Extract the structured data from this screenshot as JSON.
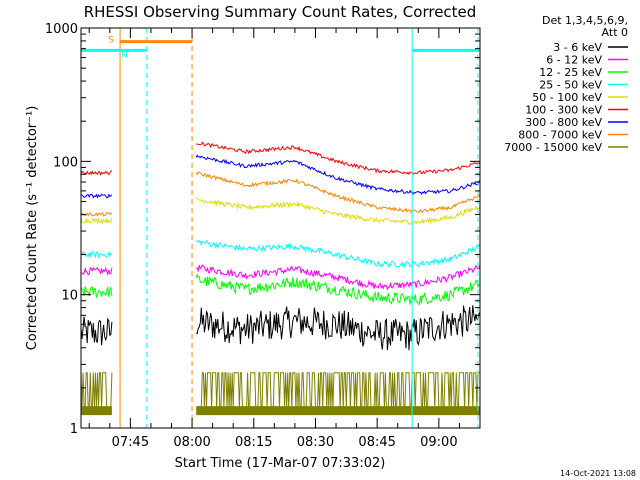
{
  "chart_data": {
    "type": "line",
    "title": "RHESSI Observing Summary Count Rates, Corrected",
    "xlabel": "Start Time (17-Mar-07 07:33:02)",
    "ylabel": "Corrected Count Rate (s⁻¹ detector⁻¹)",
    "yscale": "log",
    "ylim": [
      1,
      1000
    ],
    "xlim_minutes": [
      0,
      97
    ],
    "xticks": [
      {
        "label": "07:45",
        "min": 12
      },
      {
        "label": "08:00",
        "min": 27
      },
      {
        "label": "08:15",
        "min": 42
      },
      {
        "label": "08:30",
        "min": 57
      },
      {
        "label": "08:45",
        "min": 72
      },
      {
        "label": "09:00",
        "min": 87
      }
    ],
    "yticks": [
      {
        "label": "1",
        "value": 1
      },
      {
        "label": "10",
        "value": 10
      },
      {
        "label": "100",
        "value": 100
      },
      {
        "label": "1000",
        "value": 1000
      }
    ],
    "legend_title_lines": [
      "Det 1,3,4,5,6,9,",
      "Att 0"
    ],
    "legend_placement": "right",
    "timestamp": "14-Oct-2021 13:08",
    "gaps": [
      {
        "start_min": 7.5,
        "end_min": 27.8
      }
    ],
    "series": [
      {
        "name": "3 - 6 keV",
        "color": "#000000",
        "noise": 0.28,
        "points": [
          [
            0,
            5.2
          ],
          [
            7,
            5.2
          ],
          [
            28,
            6.2
          ],
          [
            40,
            5.5
          ],
          [
            52,
            6.3
          ],
          [
            62,
            6.0
          ],
          [
            72,
            5.0
          ],
          [
            80,
            5.0
          ],
          [
            88,
            6.0
          ],
          [
            97,
            6.5
          ]
        ]
      },
      {
        "name": "6 - 12 keV",
        "color": "#ff00ff",
        "noise": 0.06,
        "points": [
          [
            0,
            15
          ],
          [
            7,
            15
          ],
          [
            28,
            16
          ],
          [
            40,
            14
          ],
          [
            52,
            15.5
          ],
          [
            62,
            13.5
          ],
          [
            72,
            11.5
          ],
          [
            82,
            12
          ],
          [
            90,
            13.5
          ],
          [
            97,
            16
          ]
        ]
      },
      {
        "name": "12 - 25 keV",
        "color": "#00ff00",
        "noise": 0.1,
        "points": [
          [
            0,
            10.5
          ],
          [
            7,
            10.5
          ],
          [
            28,
            13
          ],
          [
            40,
            11
          ],
          [
            52,
            12.5
          ],
          [
            62,
            11
          ],
          [
            72,
            9.5
          ],
          [
            82,
            9.2
          ],
          [
            90,
            10
          ],
          [
            97,
            12
          ]
        ]
      },
      {
        "name": "25 - 50 keV",
        "color": "#00ffff",
        "noise": 0.05,
        "points": [
          [
            0,
            20
          ],
          [
            7,
            20
          ],
          [
            28,
            25
          ],
          [
            40,
            22
          ],
          [
            52,
            23
          ],
          [
            62,
            20
          ],
          [
            72,
            17
          ],
          [
            82,
            17
          ],
          [
            90,
            18.5
          ],
          [
            97,
            23
          ]
        ]
      },
      {
        "name": "50 - 100 keV",
        "color": "#dddd00",
        "noise": 0.04,
        "points": [
          [
            0,
            36
          ],
          [
            7,
            36
          ],
          [
            28,
            52
          ],
          [
            40,
            45
          ],
          [
            52,
            48
          ],
          [
            62,
            40
          ],
          [
            72,
            36
          ],
          [
            82,
            35
          ],
          [
            90,
            38
          ],
          [
            97,
            46
          ]
        ]
      },
      {
        "name": "100 - 300 keV",
        "color": "#ff0000",
        "noise": 0.03,
        "points": [
          [
            0,
            82
          ],
          [
            7,
            82
          ],
          [
            28,
            138
          ],
          [
            40,
            118
          ],
          [
            52,
            128
          ],
          [
            62,
            100
          ],
          [
            72,
            85
          ],
          [
            82,
            82
          ],
          [
            90,
            86
          ],
          [
            97,
            98
          ]
        ]
      },
      {
        "name": "300 - 800 keV",
        "color": "#0000ff",
        "noise": 0.03,
        "points": [
          [
            0,
            55
          ],
          [
            7,
            55
          ],
          [
            28,
            110
          ],
          [
            40,
            92
          ],
          [
            52,
            100
          ],
          [
            62,
            75
          ],
          [
            72,
            62
          ],
          [
            82,
            58
          ],
          [
            90,
            60
          ],
          [
            97,
            70
          ]
        ]
      },
      {
        "name": "800 - 7000 keV",
        "color": "#ff8800",
        "noise": 0.03,
        "points": [
          [
            0,
            40
          ],
          [
            7,
            40
          ],
          [
            28,
            82
          ],
          [
            40,
            66
          ],
          [
            52,
            72
          ],
          [
            62,
            55
          ],
          [
            72,
            45
          ],
          [
            82,
            42
          ],
          [
            90,
            45
          ],
          [
            97,
            55
          ]
        ]
      },
      {
        "name": "7000 - 15000 keV",
        "color": "#808000",
        "noise": 0,
        "points": [
          [
            0,
            1.3
          ],
          [
            97,
            1.3
          ]
        ]
      }
    ],
    "annotations": [
      {
        "label": "S",
        "color": "#ff8800",
        "start_min": 9.5,
        "end_min": 27,
        "value": 790
      },
      {
        "label": "N",
        "color": "#00ffff",
        "start_min": 0,
        "end_min": 16,
        "value": 680
      },
      {
        "label": "",
        "color": "#00ffff",
        "start_min": 80.5,
        "end_min": 97,
        "value": 680
      }
    ],
    "vlines": [
      {
        "min": 0,
        "color": "#00ffff",
        "dash": false
      },
      {
        "min": 9.5,
        "color": "#ff8800",
        "dash": false
      },
      {
        "min": 16,
        "color": "#00ffff",
        "dash": true
      },
      {
        "min": 27,
        "color": "#ff8800",
        "dash": true
      },
      {
        "min": 80.5,
        "color": "#00ffff",
        "dash": false
      },
      {
        "min": 96.5,
        "color": "#00ffff",
        "dash": true
      }
    ]
  }
}
